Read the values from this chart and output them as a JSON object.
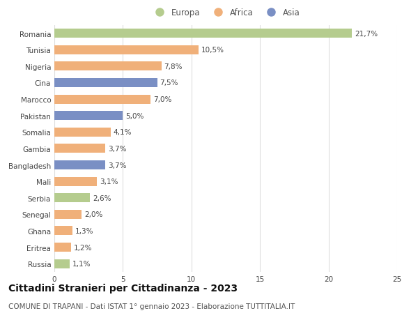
{
  "categories": [
    "Romania",
    "Tunisia",
    "Nigeria",
    "Cina",
    "Marocco",
    "Pakistan",
    "Somalia",
    "Gambia",
    "Bangladesh",
    "Mali",
    "Serbia",
    "Senegal",
    "Ghana",
    "Eritrea",
    "Russia"
  ],
  "values": [
    21.7,
    10.5,
    7.8,
    7.5,
    7.0,
    5.0,
    4.1,
    3.7,
    3.7,
    3.1,
    2.6,
    2.0,
    1.3,
    1.2,
    1.1
  ],
  "labels": [
    "21,7%",
    "10,5%",
    "7,8%",
    "7,5%",
    "7,0%",
    "5,0%",
    "4,1%",
    "3,7%",
    "3,7%",
    "3,1%",
    "2,6%",
    "2,0%",
    "1,3%",
    "1,2%",
    "1,1%"
  ],
  "continents": [
    "Europa",
    "Africa",
    "Africa",
    "Asia",
    "Africa",
    "Asia",
    "Africa",
    "Africa",
    "Asia",
    "Africa",
    "Europa",
    "Africa",
    "Africa",
    "Africa",
    "Europa"
  ],
  "colors": {
    "Europa": "#b5cc8e",
    "Africa": "#f0b07a",
    "Asia": "#7a8fc4"
  },
  "legend_order": [
    "Europa",
    "Africa",
    "Asia"
  ],
  "xlim": [
    0,
    25
  ],
  "xticks": [
    0,
    5,
    10,
    15,
    20,
    25
  ],
  "title": "Cittadini Stranieri per Cittadinanza - 2023",
  "subtitle": "COMUNE DI TRAPANI - Dati ISTAT 1° gennaio 2023 - Elaborazione TUTTITALIA.IT",
  "bg_color": "#ffffff",
  "grid_color": "#dddddd",
  "bar_height": 0.55,
  "title_fontsize": 10,
  "subtitle_fontsize": 7.5,
  "label_fontsize": 7.5,
  "tick_fontsize": 7.5,
  "legend_fontsize": 8.5
}
